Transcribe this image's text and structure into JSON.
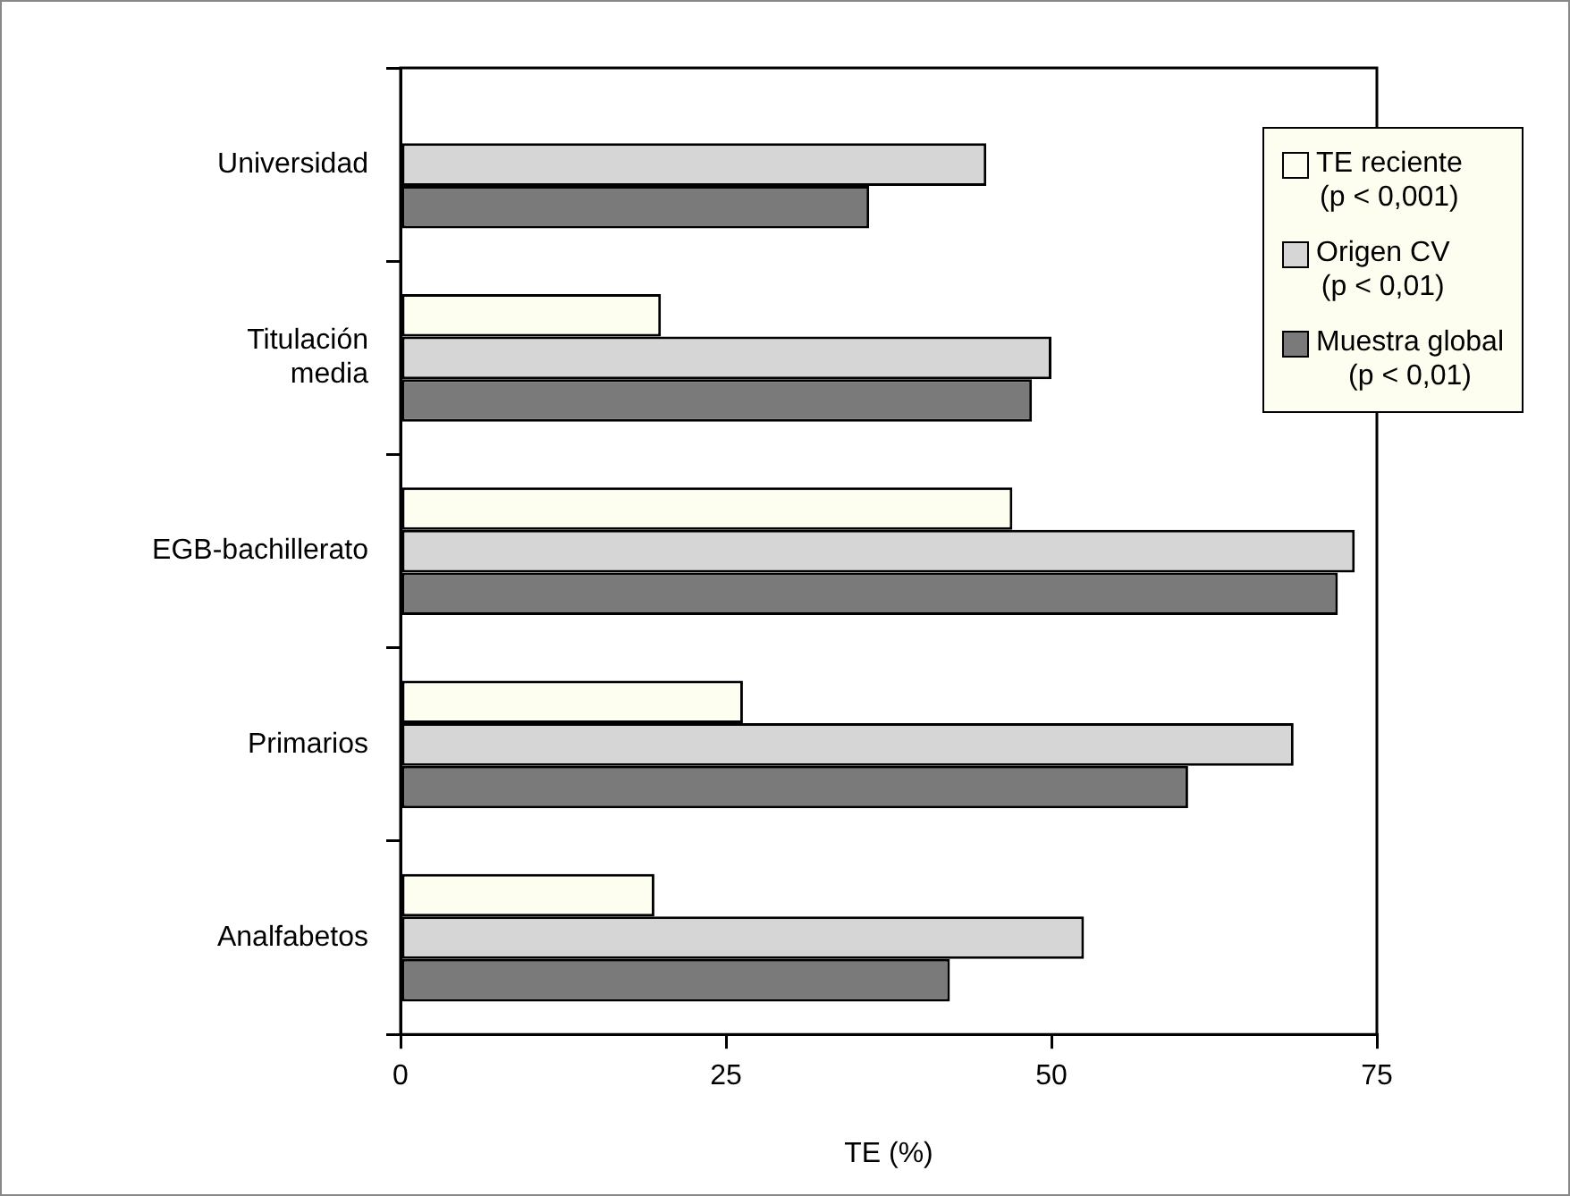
{
  "chart_data": {
    "type": "bar",
    "orientation": "horizontal",
    "xlabel": "TE (%)",
    "categories": [
      "Universidad",
      "Titulación\nmedia",
      "EGB-bachillerato",
      "Primarios",
      "Analfabetos"
    ],
    "series": [
      {
        "name": "TE reciente\n(p < 0,001)",
        "color": "#fefef0",
        "values": [
          null,
          20,
          47,
          26.3,
          19.5
        ]
      },
      {
        "name": "Origen CV\n(p < 0,01)",
        "color": "#d6d6d6",
        "values": [
          45,
          50,
          73.3,
          68.6,
          52.5
        ]
      },
      {
        "name": "Muestra global\n(p < 0,01)",
        "color": "#7a7a7a",
        "values": [
          36,
          48.5,
          72,
          60.5,
          42.2
        ]
      }
    ],
    "xlim": [
      0,
      75
    ],
    "xticks": [
      0,
      25,
      50,
      75
    ],
    "grid": false,
    "legend": "top right"
  }
}
